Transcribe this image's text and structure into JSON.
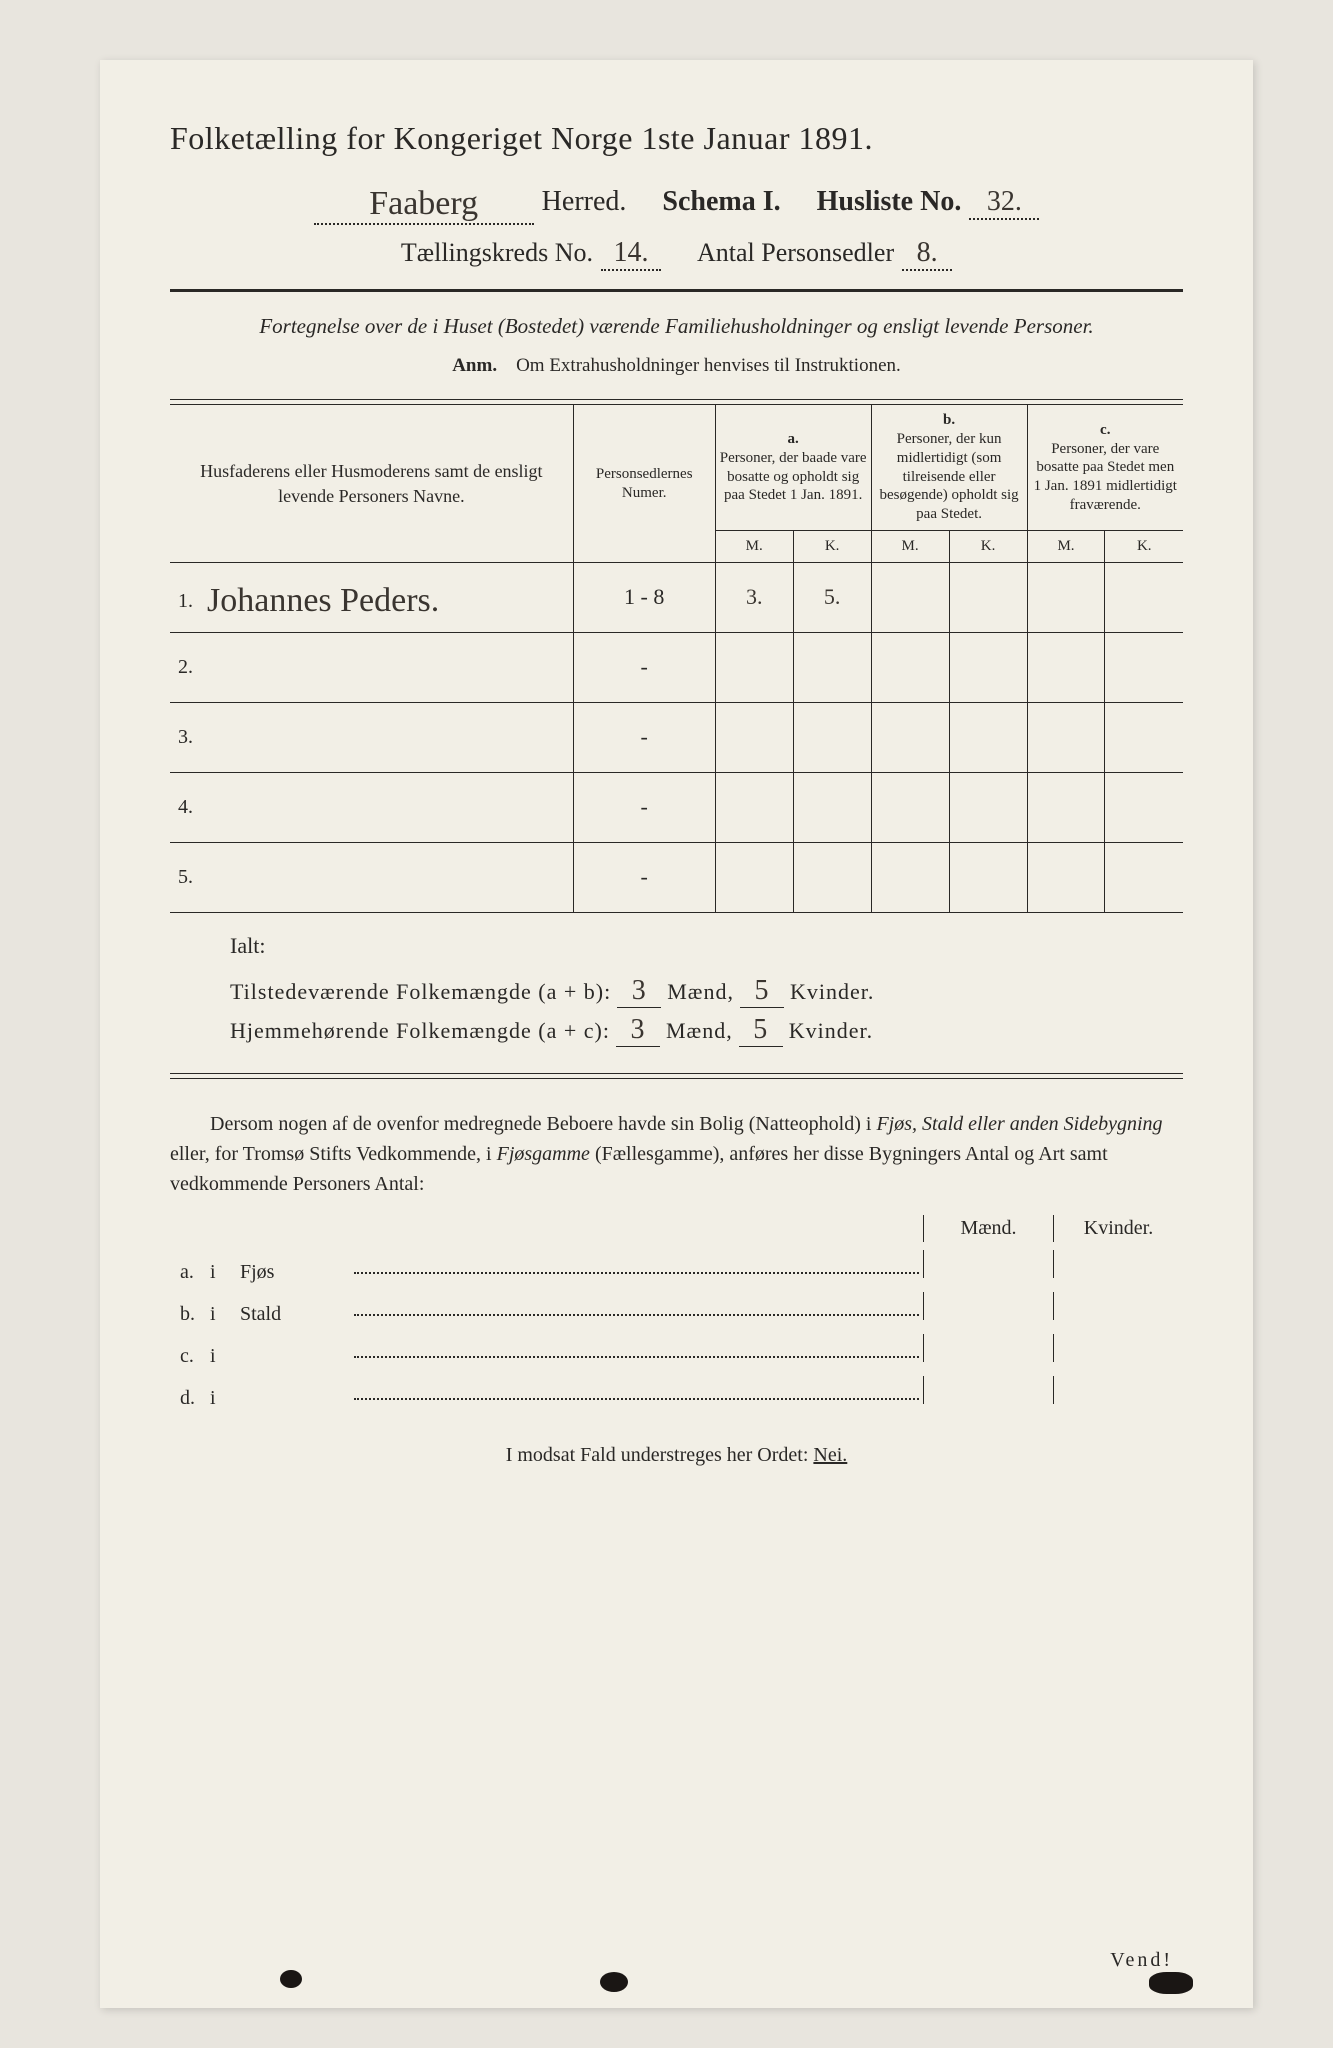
{
  "title": "Folketælling for Kongeriget Norge 1ste Januar 1891.",
  "herred_value": "Faaberg",
  "herred_label": "Herred.",
  "schema_label": "Schema I.",
  "husliste_label": "Husliste No.",
  "husliste_value": "32.",
  "kreds_label": "Tællingskreds No.",
  "kreds_value": "14.",
  "antal_label": "Antal Personsedler",
  "antal_value": "8.",
  "fortegnelse": "Fortegnelse over de i Huset (Bostedet) værende Familiehusholdninger og ensligt levende Personer.",
  "anm_label": "Anm.",
  "anm_text": "Om Extrahusholdninger henvises til Instruktionen.",
  "col_names": "Husfaderens eller Husmoderens samt de ensligt levende Personers Navne.",
  "col_numer": "Personsedlernes Numer.",
  "col_a_label": "a.",
  "col_a_text": "Personer, der baade vare bosatte og opholdt sig paa Stedet 1 Jan. 1891.",
  "col_b_label": "b.",
  "col_b_text": "Personer, der kun midlertidigt (som tilreisende eller besøgende) opholdt sig paa Stedet.",
  "col_c_label": "c.",
  "col_c_text": "Personer, der vare bosatte paa Stedet men 1 Jan. 1891 midlertidigt fraværende.",
  "M": "M.",
  "K": "K.",
  "rows": [
    {
      "n": "1.",
      "name": "Johannes Peders.",
      "numer": "1 - 8",
      "aM": "3.",
      "aK": "5.",
      "bM": "",
      "bK": "",
      "cM": "",
      "cK": ""
    },
    {
      "n": "2.",
      "name": "",
      "numer": "-",
      "aM": "",
      "aK": "",
      "bM": "",
      "bK": "",
      "cM": "",
      "cK": ""
    },
    {
      "n": "3.",
      "name": "",
      "numer": "-",
      "aM": "",
      "aK": "",
      "bM": "",
      "bK": "",
      "cM": "",
      "cK": ""
    },
    {
      "n": "4.",
      "name": "",
      "numer": "-",
      "aM": "",
      "aK": "",
      "bM": "",
      "bK": "",
      "cM": "",
      "cK": ""
    },
    {
      "n": "5.",
      "name": "",
      "numer": "-",
      "aM": "",
      "aK": "",
      "bM": "",
      "bK": "",
      "cM": "",
      "cK": ""
    }
  ],
  "ialt": "Ialt:",
  "tilstede_label": "Tilstedeværende Folkemængde (a + b):",
  "hjemme_label": "Hjemmehørende Folkemængde (a + c):",
  "maend": "Mænd,",
  "kvinder": "Kvinder.",
  "tilstede_m": "3",
  "tilstede_k": "5",
  "hjemme_m": "3",
  "hjemme_k": "5",
  "body_para": "Dersom nogen af de ovenfor medregnede Beboere havde sin Bolig (Natteophold) i Fjøs, Stald eller anden Sidebygning eller, for Tromsø Stifts Vedkommende, i Fjøsgamme (Fællesgamme), anføres her disse Bygningers Antal og Art samt vedkommende Personers Antal:",
  "maend_h": "Mænd.",
  "kvinder_h": "Kvinder.",
  "buildings": [
    {
      "lbl": "a.",
      "i": "i",
      "name": "Fjøs"
    },
    {
      "lbl": "b.",
      "i": "i",
      "name": "Stald"
    },
    {
      "lbl": "c.",
      "i": "i",
      "name": ""
    },
    {
      "lbl": "d.",
      "i": "i",
      "name": ""
    }
  ],
  "nei_pre": "I modsat Fald understreges her Ordet: ",
  "nei": "Nei.",
  "vend": "Vend!"
}
